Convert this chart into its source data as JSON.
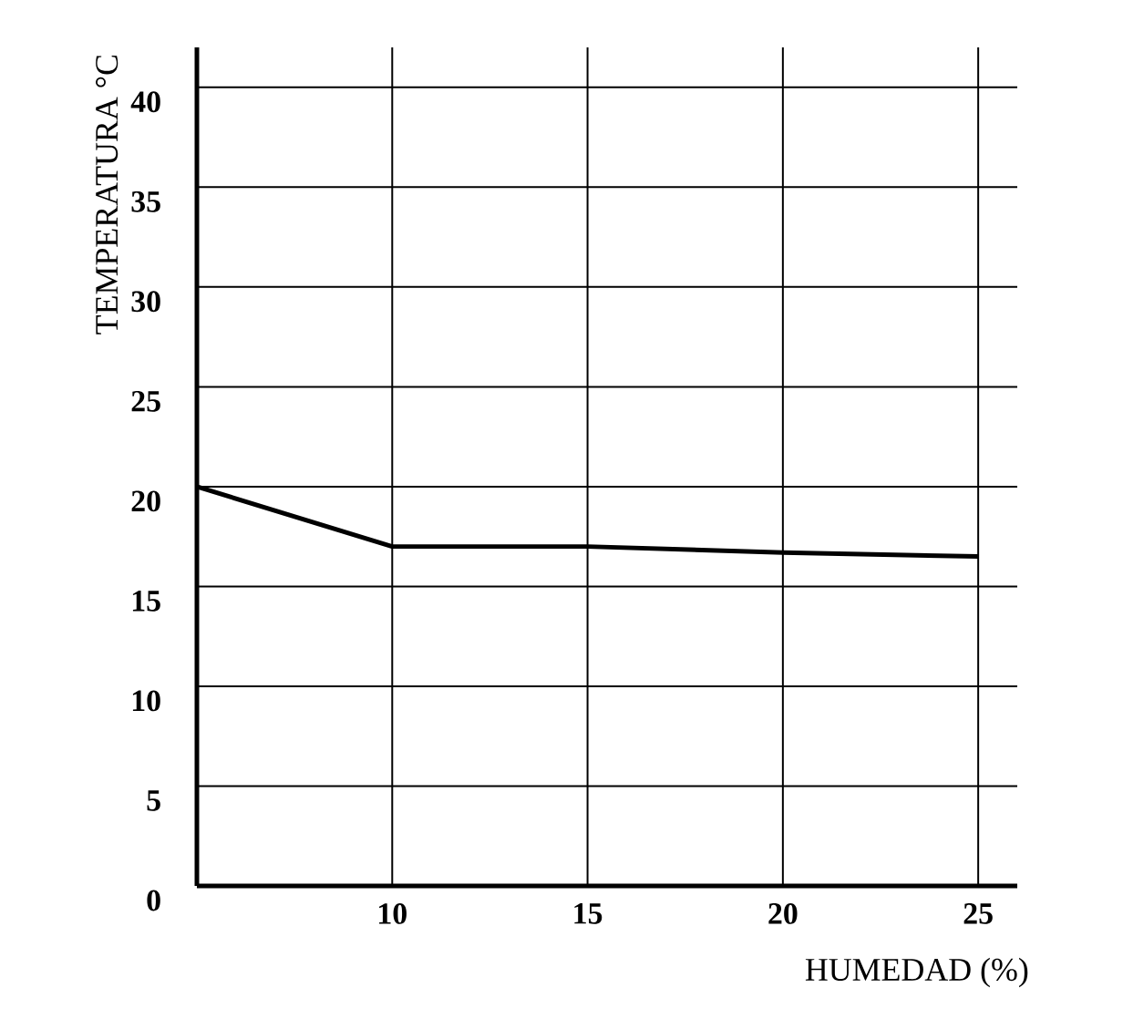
{
  "chart_data": {
    "type": "line",
    "xlabel": "HUMEDAD (%)",
    "ylabel": "TEMPERATURA °C",
    "x": [
      5,
      10,
      15,
      20,
      25
    ],
    "series": [
      {
        "color": "#000000",
        "values": [
          20,
          17,
          17,
          16.7,
          16.5
        ]
      }
    ],
    "xlim": [
      5,
      26
    ],
    "ylim": [
      0,
      42
    ],
    "xticks": [
      10,
      15,
      20,
      25
    ],
    "yticks": [
      0,
      5,
      10,
      15,
      20,
      25,
      30,
      35,
      40
    ],
    "grid": true,
    "marker": "none",
    "line_style": "solid"
  }
}
